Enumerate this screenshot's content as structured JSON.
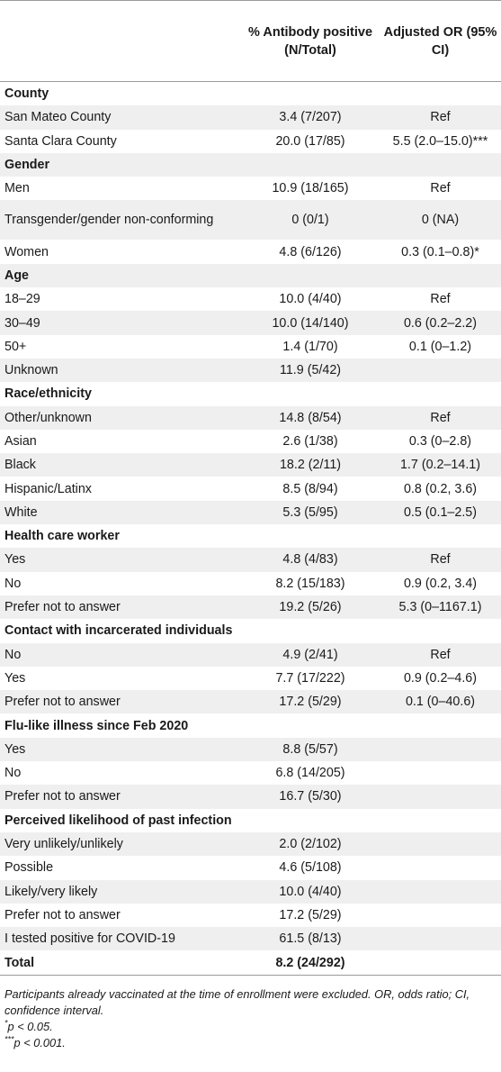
{
  "headers": {
    "col1": "",
    "col2": "% Antibody positive (N/Total)",
    "col3": "Adjusted OR (95% CI)"
  },
  "rows": [
    {
      "type": "cat",
      "label": "County",
      "pct": "",
      "or": ""
    },
    {
      "type": "item",
      "label": "San Mateo County",
      "pct": "3.4 (7/207)",
      "or": "Ref"
    },
    {
      "type": "item",
      "label": "Santa Clara County",
      "pct": "20.0 (17/85)",
      "or": "5.5 (2.0–15.0)***"
    },
    {
      "type": "cat",
      "label": "Gender",
      "pct": "",
      "or": ""
    },
    {
      "type": "item",
      "label": "Men",
      "pct": "10.9 (18/165)",
      "or": "Ref"
    },
    {
      "type": "item",
      "label": "Transgender/gender non-conforming",
      "pct": "0 (0/1)",
      "or": "0 (NA)"
    },
    {
      "type": "item",
      "label": "Women",
      "pct": "4.8 (6/126)",
      "or": "0.3 (0.1–0.8)*"
    },
    {
      "type": "cat",
      "label": "Age",
      "pct": "",
      "or": ""
    },
    {
      "type": "item",
      "label": "18–29",
      "pct": "10.0 (4/40)",
      "or": "Ref"
    },
    {
      "type": "item",
      "label": "30–49",
      "pct": "10.0 (14/140)",
      "or": "0.6 (0.2–2.2)"
    },
    {
      "type": "item",
      "label": "50+",
      "pct": "1.4 (1/70)",
      "or": "0.1 (0–1.2)"
    },
    {
      "type": "item",
      "label": "Unknown",
      "pct": "11.9 (5/42)",
      "or": ""
    },
    {
      "type": "cat",
      "label": "Race/ethnicity",
      "pct": "",
      "or": ""
    },
    {
      "type": "item",
      "label": "Other/unknown",
      "pct": "14.8 (8/54)",
      "or": "Ref"
    },
    {
      "type": "item",
      "label": "Asian",
      "pct": "2.6 (1/38)",
      "or": "0.3 (0–2.8)"
    },
    {
      "type": "item",
      "label": "Black",
      "pct": "18.2 (2/11)",
      "or": "1.7 (0.2–14.1)"
    },
    {
      "type": "item",
      "label": "Hispanic/Latinx",
      "pct": "8.5 (8/94)",
      "or": "0.8 (0.2, 3.6)"
    },
    {
      "type": "item",
      "label": "White",
      "pct": "5.3 (5/95)",
      "or": "0.5 (0.1–2.5)"
    },
    {
      "type": "cat",
      "label": "Health care worker",
      "pct": "",
      "or": ""
    },
    {
      "type": "item",
      "label": "Yes",
      "pct": "4.8 (4/83)",
      "or": "Ref"
    },
    {
      "type": "item",
      "label": "No",
      "pct": "8.2 (15/183)",
      "or": "0.9 (0.2, 3.4)"
    },
    {
      "type": "item",
      "label": "Prefer not to answer",
      "pct": "19.2 (5/26)",
      "or": "5.3 (0–1167.1)"
    },
    {
      "type": "cat",
      "label": "Contact with incarcerated individuals",
      "pct": "",
      "or": ""
    },
    {
      "type": "item",
      "label": "No",
      "pct": "4.9 (2/41)",
      "or": "Ref"
    },
    {
      "type": "item",
      "label": "Yes",
      "pct": "7.7 (17/222)",
      "or": "0.9 (0.2–4.6)"
    },
    {
      "type": "item",
      "label": "Prefer not to answer",
      "pct": "17.2 (5/29)",
      "or": "0.1 (0–40.6)"
    },
    {
      "type": "cat",
      "label": "Flu-like illness since Feb 2020",
      "pct": "",
      "or": ""
    },
    {
      "type": "item",
      "label": "Yes",
      "pct": "8.8 (5/57)",
      "or": ""
    },
    {
      "type": "item",
      "label": "No",
      "pct": "6.8 (14/205)",
      "or": ""
    },
    {
      "type": "item",
      "label": "Prefer not to answer",
      "pct": "16.7 (5/30)",
      "or": ""
    },
    {
      "type": "cat",
      "label": "Perceived likelihood of past infection",
      "pct": "",
      "or": ""
    },
    {
      "type": "item",
      "label": "Very unlikely/unlikely",
      "pct": "2.0 (2/102)",
      "or": ""
    },
    {
      "type": "item",
      "label": "Possible",
      "pct": "4.6 (5/108)",
      "or": ""
    },
    {
      "type": "item",
      "label": "Likely/very likely",
      "pct": "10.0 (4/40)",
      "or": ""
    },
    {
      "type": "item",
      "label": "Prefer not to answer",
      "pct": "17.2 (5/29)",
      "or": ""
    },
    {
      "type": "item",
      "label": "I tested positive for COVID-19",
      "pct": "61.5 (8/13)",
      "or": ""
    },
    {
      "type": "total",
      "label": "Total",
      "pct": "8.2 (24/292)",
      "or": ""
    }
  ],
  "footnotes": {
    "note": "Participants already vaccinated at the time of enrollment were excluded. OR, odds ratio; CI, confidence interval.",
    "sig1_marker": "*",
    "sig1_text": "p < 0.05.",
    "sig2_marker": "***",
    "sig2_text": "p < 0.001."
  }
}
